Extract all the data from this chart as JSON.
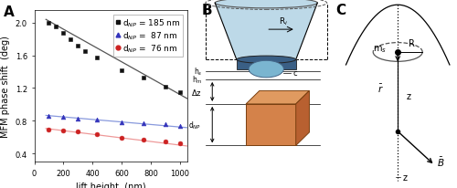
{
  "panel_A": {
    "xlabel": "lift height  (nm)",
    "ylabel": "MFM phase shift  (deg)",
    "xlim": [
      0,
      1050
    ],
    "ylim": [
      0.3,
      2.15
    ],
    "yticks": [
      0.4,
      0.8,
      1.2,
      1.6,
      2.0
    ],
    "xticks": [
      0,
      200,
      400,
      600,
      800,
      1000
    ],
    "series": [
      {
        "label": "d$_{NP}$ = 185 nm",
        "color": "#111111",
        "marker": "s",
        "x_data": [
          100,
          150,
          200,
          250,
          300,
          350,
          430,
          600,
          750,
          900,
          1000
        ],
        "y_data": [
          2.0,
          1.95,
          1.88,
          1.8,
          1.72,
          1.65,
          1.57,
          1.42,
          1.33,
          1.22,
          1.15
        ],
        "fit_x": [
          80,
          1050
        ],
        "fit_y": [
          2.04,
          1.07
        ],
        "fit_color": "#555555"
      },
      {
        "label": "d$_{NP}$ =  87 nm",
        "color": "#3333bb",
        "marker": "^",
        "x_data": [
          100,
          200,
          300,
          430,
          600,
          750,
          900,
          1000
        ],
        "y_data": [
          0.855,
          0.845,
          0.83,
          0.81,
          0.785,
          0.775,
          0.755,
          0.74
        ],
        "fit_x": [
          80,
          1050
        ],
        "fit_y": [
          0.865,
          0.715
        ],
        "fit_color": "#8899dd"
      },
      {
        "label": "d$_{NP}$ =  76 nm",
        "color": "#cc2222",
        "marker": "o",
        "x_data": [
          100,
          200,
          300,
          430,
          600,
          750,
          900,
          1000
        ],
        "y_data": [
          0.695,
          0.685,
          0.665,
          0.635,
          0.595,
          0.57,
          0.545,
          0.52
        ],
        "fit_x": [
          80,
          1050
        ],
        "fit_y": [
          0.705,
          0.49
        ],
        "fit_color": "#ee9999"
      }
    ]
  },
  "figure_bg": "#ffffff",
  "panel_label_fontsize": 11,
  "axis_label_fontsize": 7,
  "tick_fontsize": 6,
  "legend_fontsize": 6.5,
  "tip_body_color": "#bdd9e8",
  "tip_dark_color": "#3a5f85",
  "tip_apex_color": "#7ab5d0",
  "cube_front_color": "#d4824a",
  "cube_top_color": "#e09a60",
  "cube_right_color": "#b86030"
}
